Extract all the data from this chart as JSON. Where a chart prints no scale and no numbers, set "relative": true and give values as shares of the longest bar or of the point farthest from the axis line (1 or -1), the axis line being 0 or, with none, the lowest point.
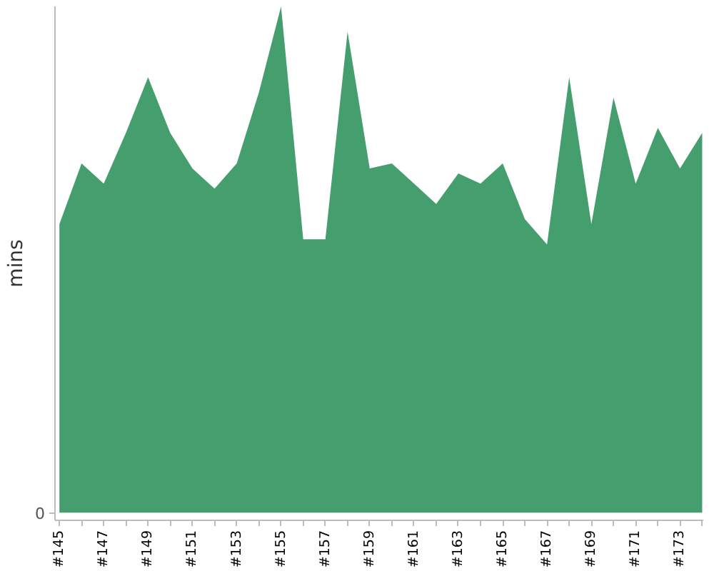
{
  "chart_data": {
    "type": "area",
    "ylabel": "mins",
    "relative": true,
    "color": "#459e6e",
    "categories": [
      "#145",
      null,
      "#147",
      null,
      "#149",
      null,
      "#151",
      null,
      "#153",
      null,
      "#155",
      null,
      "#157",
      null,
      "#159",
      null,
      "#161",
      null,
      "#163",
      null,
      "#165",
      null,
      "#167",
      null,
      "#169",
      null,
      "#171",
      null,
      "#173",
      null
    ],
    "values": [
      0.57,
      0.69,
      0.65,
      0.75,
      0.86,
      0.75,
      0.68,
      0.64,
      0.69,
      0.83,
      1,
      0.54,
      0.54,
      0.95,
      0.68,
      0.69,
      0.65,
      0.61,
      0.67,
      0.65,
      0.69,
      0.58,
      0.53,
      0.86,
      0.57,
      0.82,
      0.65,
      0.76,
      0.68,
      0.75
    ],
    "annotations": [
      "0"
    ]
  }
}
